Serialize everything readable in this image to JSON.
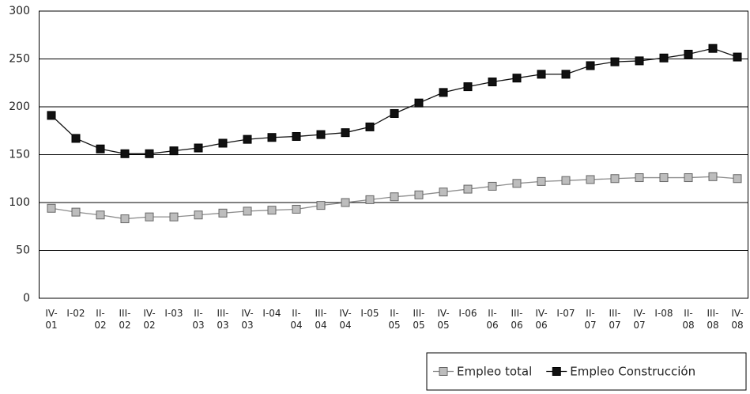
{
  "chart_data": {
    "type": "line",
    "categories": [
      "IV-01",
      "I-02",
      "II-02",
      "III-02",
      "IV-02",
      "I-03",
      "II-03",
      "III-03",
      "IV-03",
      "I-04",
      "II-04",
      "III-04",
      "IV-04",
      "I-05",
      "II-05",
      "III-05",
      "IV-05",
      "I-06",
      "II-06",
      "III-06",
      "IV-06",
      "I-07",
      "II-07",
      "III-07",
      "IV-07",
      "I-08",
      "II-08",
      "III-08",
      "IV-08"
    ],
    "series": [
      {
        "name": "Empleo total",
        "color": "#bdbdbd",
        "line_color": "#8c8c8c",
        "values": [
          94,
          90,
          87,
          83,
          85,
          85,
          87,
          89,
          91,
          92,
          93,
          97,
          100,
          103,
          106,
          108,
          111,
          114,
          117,
          120,
          122,
          123,
          124,
          125,
          126,
          126,
          126,
          127,
          125
        ]
      },
      {
        "name": "Empleo Construcción",
        "color": "#111111",
        "line_color": "#111111",
        "values": [
          191,
          167,
          156,
          151,
          151,
          154,
          157,
          162,
          166,
          168,
          169,
          171,
          173,
          179,
          193,
          204,
          215,
          221,
          226,
          230,
          234,
          234,
          243,
          247,
          248,
          251,
          255,
          261,
          252
        ]
      }
    ],
    "ylim": [
      0,
      300
    ],
    "yticks": [
      0,
      50,
      100,
      150,
      200,
      250,
      300
    ],
    "grid": true,
    "legend": "bottom-right"
  }
}
